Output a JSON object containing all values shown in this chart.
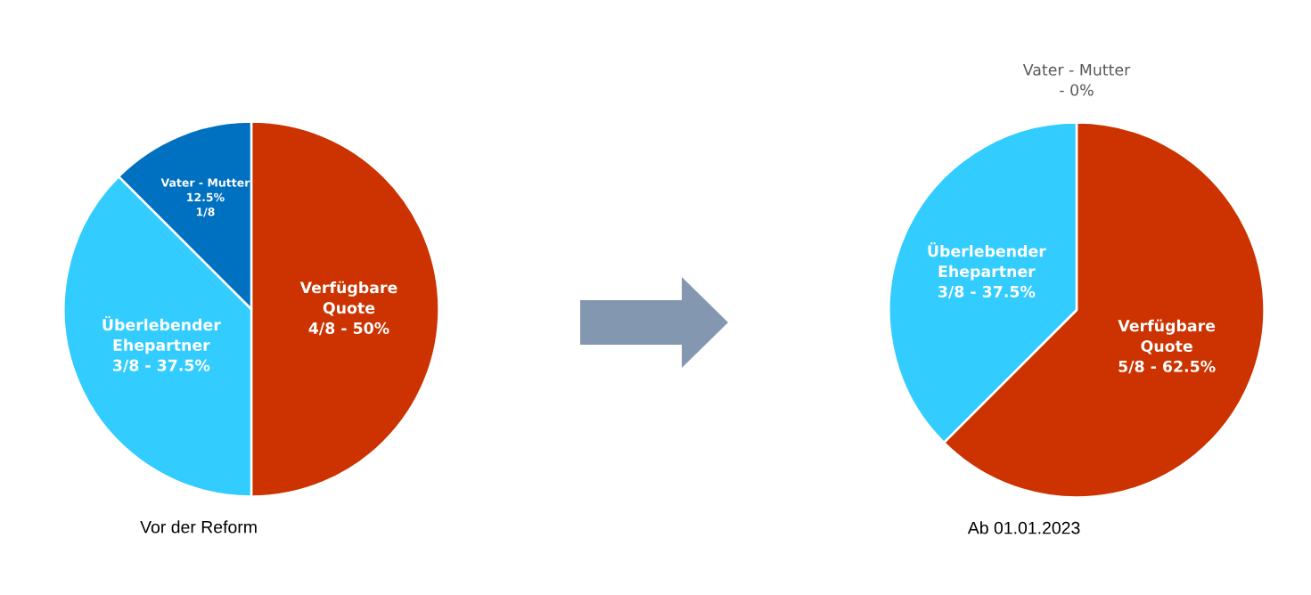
{
  "chart_data": [
    {
      "type": "pie",
      "title": "Vor der Reform",
      "categories": [
        "Verfügbare\nQuote\n4/8 - 50%",
        "Überlebender\nEhepartner\n3/8 - 37.5%",
        "Vater - Mutter\n12.5%\n1/8"
      ],
      "values": [
        50,
        37.5,
        12.5
      ],
      "colors": [
        "#cc3300",
        "#33ccff",
        "#0070c0"
      ]
    },
    {
      "type": "pie",
      "title": "Ab 01.01.2023",
      "categories": [
        "Verfügbare\nQuote\n5/8 - 62.5%",
        "Überlebender\nEhepartner\n3/8 - 37.5%",
        "Vater - Mutter\n- 0%"
      ],
      "values": [
        62.5,
        37.5,
        0
      ],
      "colors": [
        "#cc3300",
        "#33ccff",
        "#0070c0"
      ]
    }
  ]
}
